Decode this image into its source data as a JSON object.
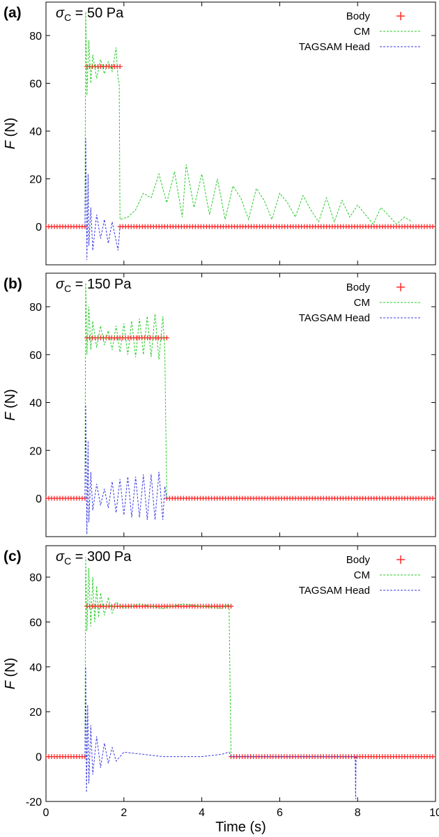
{
  "figure": {
    "xlabel": "Time (s)",
    "colors": {
      "body": "#ff2a2a",
      "cm": "#22cc22",
      "head": "#3a3ae0",
      "frame": "#000000"
    }
  },
  "chart_data": [
    {
      "type": "line",
      "panel_label": "(a)",
      "title_symbol": "σ",
      "title_subscript": "C",
      "title_value": " = 50 Pa",
      "ylabel_italic": "F",
      "ylabel_unit": " (N)",
      "xlim": [
        0,
        10
      ],
      "ylim": [
        -16,
        94
      ],
      "x_ticks": [
        0,
        2,
        4,
        6,
        8,
        10
      ],
      "y_ticks": [
        0,
        20,
        40,
        60,
        80
      ],
      "show_x_tick_labels": false,
      "legend": {
        "position": "top-right",
        "entries": [
          "Body",
          "CM",
          "TAGSAM Head"
        ]
      },
      "series": [
        {
          "name": "Body",
          "style": "points",
          "color": "#ff2a2a",
          "segments": [
            {
              "x0": 0,
              "x1": 1.0,
              "y": 0
            },
            {
              "x0": 1.05,
              "x1": 1.9,
              "y": 67
            },
            {
              "x0": 1.9,
              "x1": 10,
              "y": 0
            }
          ]
        },
        {
          "name": "CM",
          "style": "dashed",
          "color": "#22cc22",
          "x": [
            1.0,
            1.02,
            1.05,
            1.1,
            1.15,
            1.2,
            1.3,
            1.4,
            1.5,
            1.6,
            1.7,
            1.8,
            1.85,
            1.88,
            1.9,
            2.1,
            2.3,
            2.5,
            2.7,
            2.9,
            3.1,
            3.3,
            3.5,
            3.6,
            3.8,
            4.0,
            4.2,
            4.4,
            4.6,
            4.8,
            5.0,
            5.2,
            5.4,
            5.6,
            5.8,
            6.0,
            6.2,
            6.4,
            6.6,
            6.8,
            7.0,
            7.2,
            7.4,
            7.6,
            7.8,
            8.0,
            8.4,
            8.6,
            9.0,
            9.2,
            9.4
          ],
          "y": [
            0,
            90,
            55,
            78,
            60,
            72,
            62,
            70,
            64,
            69,
            65,
            75,
            62,
            60,
            3,
            4,
            7,
            14,
            12,
            22,
            10,
            23,
            4,
            26,
            8,
            22,
            5,
            20,
            3,
            17,
            12,
            3,
            16,
            11,
            3,
            14,
            10,
            4,
            13,
            7,
            2,
            12,
            2,
            11,
            4,
            9,
            1,
            8,
            1,
            4,
            2
          ]
        },
        {
          "name": "TAGSAM Head",
          "style": "dashed",
          "color": "#3a3ae0",
          "x": [
            1.0,
            1.02,
            1.05,
            1.08,
            1.1,
            1.15,
            1.2,
            1.3,
            1.4,
            1.5,
            1.6,
            1.7,
            1.8,
            1.85,
            1.9
          ],
          "y": [
            0,
            37,
            -14,
            22,
            -8,
            8,
            -10,
            5,
            -5,
            3,
            -7,
            2,
            -6,
            -10,
            0
          ]
        }
      ]
    },
    {
      "type": "line",
      "panel_label": "(b)",
      "title_symbol": "σ",
      "title_subscript": "C",
      "title_value": " = 150 Pa",
      "ylabel_italic": "F",
      "ylabel_unit": " (N)",
      "xlim": [
        0,
        10
      ],
      "ylim": [
        -16,
        94
      ],
      "x_ticks": [
        0,
        2,
        4,
        6,
        8,
        10
      ],
      "y_ticks": [
        0,
        20,
        40,
        60,
        80
      ],
      "show_x_tick_labels": false,
      "legend": {
        "position": "top-right",
        "entries": [
          "Body",
          "CM",
          "TAGSAM Head"
        ]
      },
      "series": [
        {
          "name": "Body",
          "style": "points",
          "color": "#ff2a2a",
          "segments": [
            {
              "x0": 0,
              "x1": 1.0,
              "y": 0
            },
            {
              "x0": 1.05,
              "x1": 3.1,
              "y": 67
            },
            {
              "x0": 3.1,
              "x1": 10,
              "y": 0
            }
          ]
        },
        {
          "name": "CM",
          "style": "dashed",
          "color": "#22cc22",
          "x": [
            1.0,
            1.02,
            1.05,
            1.1,
            1.15,
            1.2,
            1.3,
            1.4,
            1.5,
            1.6,
            1.7,
            1.8,
            1.9,
            2.0,
            2.1,
            2.2,
            2.3,
            2.4,
            2.5,
            2.6,
            2.7,
            2.8,
            2.9,
            3.0,
            3.05,
            3.1
          ],
          "y": [
            0,
            90,
            60,
            80,
            62,
            74,
            63,
            72,
            64,
            70,
            62,
            72,
            61,
            73,
            60,
            74,
            59,
            75,
            60,
            76,
            59,
            77,
            58,
            76,
            62,
            0
          ]
        },
        {
          "name": "TAGSAM Head",
          "style": "dashed",
          "color": "#3a3ae0",
          "x": [
            1.0,
            1.02,
            1.05,
            1.08,
            1.1,
            1.15,
            1.2,
            1.3,
            1.4,
            1.5,
            1.6,
            1.7,
            1.8,
            1.9,
            2.0,
            2.1,
            2.2,
            2.3,
            2.4,
            2.5,
            2.6,
            2.7,
            2.8,
            2.9,
            3.0,
            3.05,
            3.1
          ],
          "y": [
            0,
            39,
            -15,
            24,
            -10,
            11,
            -5,
            6,
            -3,
            4,
            -4,
            7,
            -6,
            8,
            -7,
            9,
            -8,
            9,
            -8,
            10,
            -9,
            10,
            -9,
            11,
            -9,
            5,
            0
          ]
        }
      ]
    },
    {
      "type": "line",
      "panel_label": "(c)",
      "title_symbol": "σ",
      "title_subscript": "C",
      "title_value": " = 300 Pa",
      "ylabel_italic": "F",
      "ylabel_unit": " (N)",
      "xlim": [
        0,
        10
      ],
      "ylim": [
        -20,
        94
      ],
      "x_ticks": [
        0,
        2,
        4,
        6,
        8,
        10
      ],
      "y_ticks": [
        -20,
        0,
        20,
        40,
        60,
        80
      ],
      "show_x_tick_labels": true,
      "legend": {
        "position": "top-right",
        "entries": [
          "Body",
          "CM",
          "TAGSAM Head"
        ]
      },
      "series": [
        {
          "name": "Body",
          "style": "points",
          "color": "#ff2a2a",
          "segments": [
            {
              "x0": 0,
              "x1": 1.0,
              "y": 0
            },
            {
              "x0": 1.05,
              "x1": 4.75,
              "y": 67
            },
            {
              "x0": 4.75,
              "x1": 10,
              "y": 0
            }
          ]
        },
        {
          "name": "CM",
          "style": "dashed",
          "color": "#22cc22",
          "x": [
            1.0,
            1.02,
            1.05,
            1.1,
            1.15,
            1.2,
            1.25,
            1.3,
            1.35,
            1.4,
            1.5,
            1.6,
            1.7,
            1.8,
            2.0,
            2.4,
            3.0,
            3.5,
            4.0,
            4.5,
            4.7,
            4.75
          ],
          "y": [
            0,
            89,
            56,
            84,
            58,
            80,
            60,
            76,
            62,
            73,
            63,
            71,
            64,
            69,
            66,
            68,
            66,
            68,
            67,
            66,
            68,
            0
          ]
        },
        {
          "name": "TAGSAM Head",
          "style": "dashed",
          "color": "#3a3ae0",
          "x": [
            1.0,
            1.02,
            1.04,
            1.07,
            1.1,
            1.15,
            1.2,
            1.3,
            1.4,
            1.5,
            1.6,
            1.7,
            1.8,
            2.0,
            2.5,
            3.0,
            4.0,
            4.5,
            4.7,
            4.75,
            7.94,
            7.95,
            7.96
          ],
          "y": [
            0,
            40,
            -16,
            23,
            -12,
            14,
            -8,
            9,
            -5,
            6,
            -3,
            4,
            -2,
            2,
            1,
            0,
            0,
            1,
            2,
            0,
            0,
            -19,
            0
          ]
        }
      ]
    }
  ]
}
